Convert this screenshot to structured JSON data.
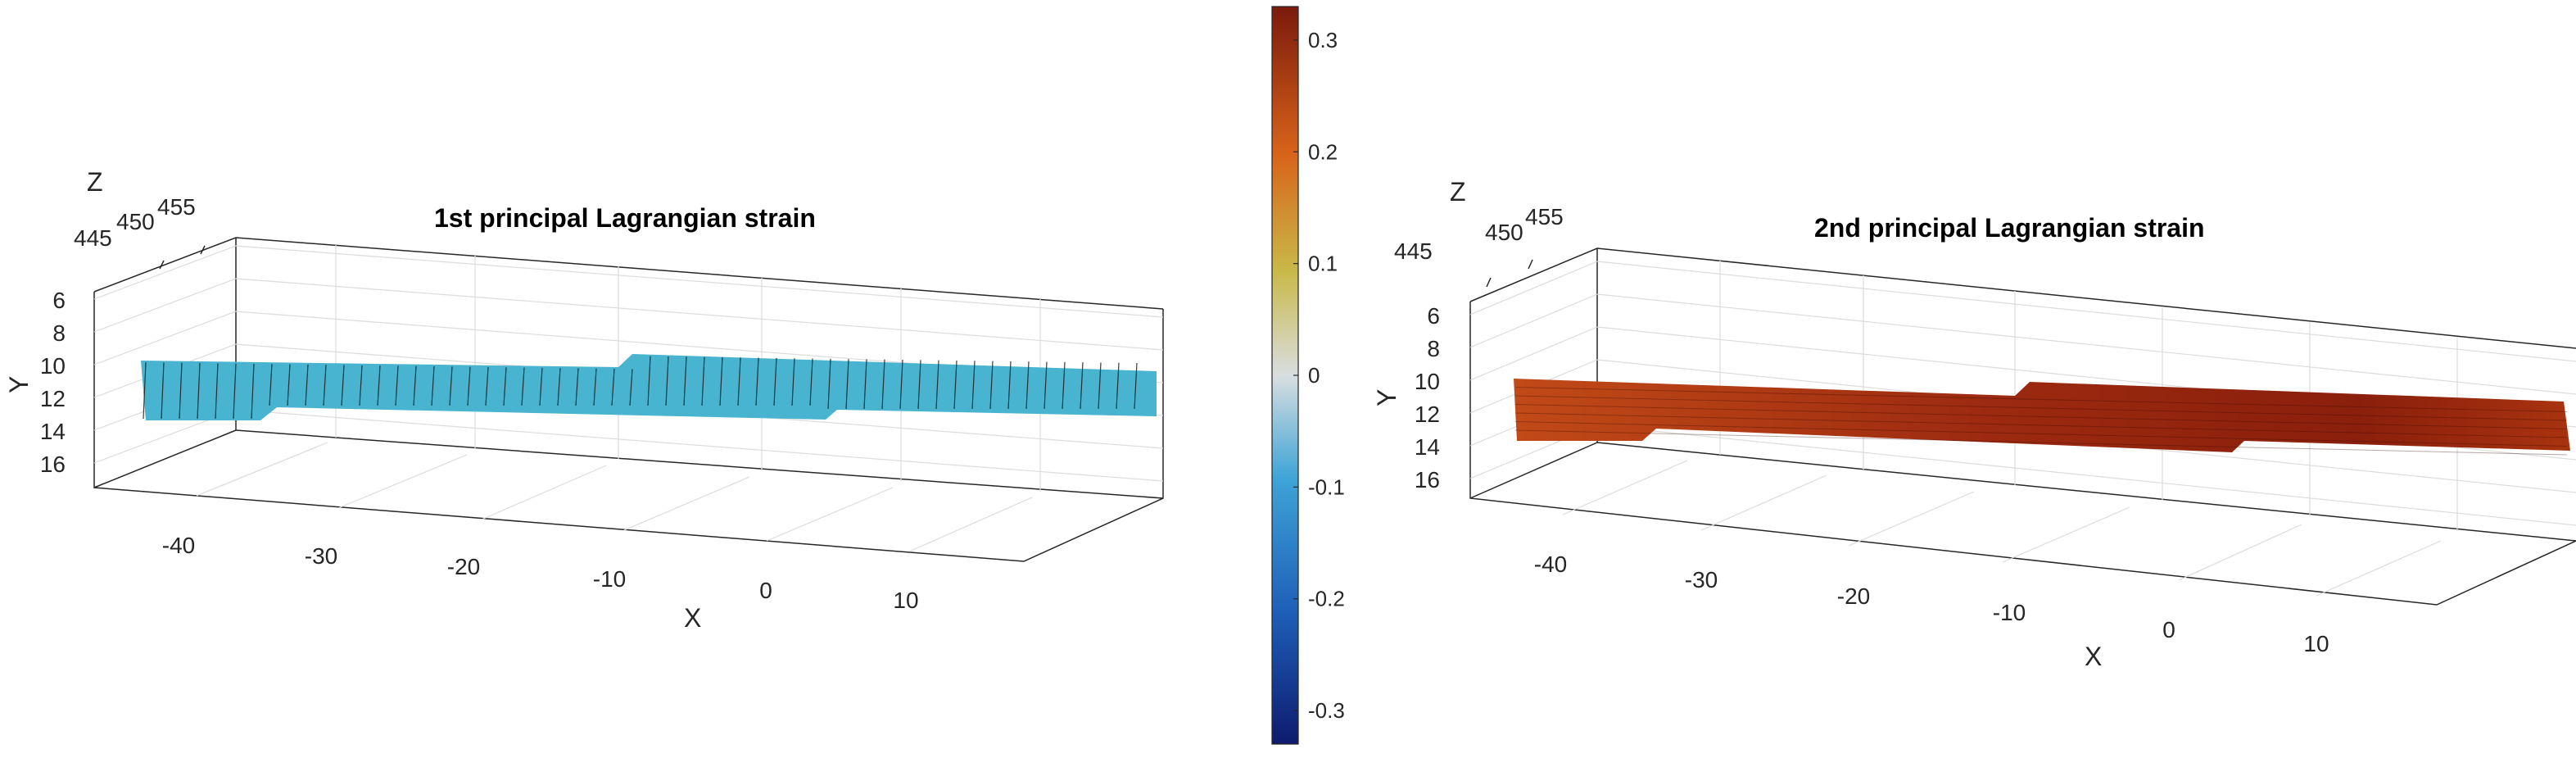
{
  "colorbar": {
    "type": "colorbar",
    "ticks": [
      "0.3",
      "0.2",
      "0.1",
      "0",
      "-0.1",
      "-0.2",
      "-0.3"
    ],
    "tick_values": [
      0.3,
      0.2,
      0.1,
      0,
      -0.1,
      -0.2,
      -0.3
    ],
    "clim": [
      -0.33,
      0.33
    ],
    "colors": [
      "#0d1b6e",
      "#1f5fb8",
      "#3ea4d6",
      "#d9dee0",
      "#c9b94a",
      "#d8631a",
      "#7a1a0d"
    ]
  },
  "chart_data": [
    {
      "type": "surface",
      "title": "1st principal Lagrangian strain",
      "xlabel": "X",
      "ylabel": "Y",
      "zlabel": "Z",
      "x_ticks": [
        "-40",
        "-30",
        "-20",
        "-10",
        "0",
        "10"
      ],
      "y_ticks": [
        "6",
        "8",
        "10",
        "12",
        "14",
        "16"
      ],
      "z_ticks": [
        "445",
        "450",
        "455"
      ],
      "strain_value": -0.1,
      "surface_color": "#48b4cf",
      "mesh_lines": true
    },
    {
      "type": "surface",
      "title": "2nd principal Lagrangian strain",
      "xlabel": "X",
      "ylabel": "Y",
      "zlabel": "Z",
      "x_ticks": [
        "-40",
        "-30",
        "-20",
        "-10",
        "0",
        "10"
      ],
      "y_ticks": [
        "6",
        "8",
        "10",
        "12",
        "14",
        "16"
      ],
      "z_ticks": [
        "445",
        "450",
        "455"
      ],
      "strain_value": 0.27,
      "surface_color": "#a83012",
      "mesh_lines": true
    }
  ]
}
